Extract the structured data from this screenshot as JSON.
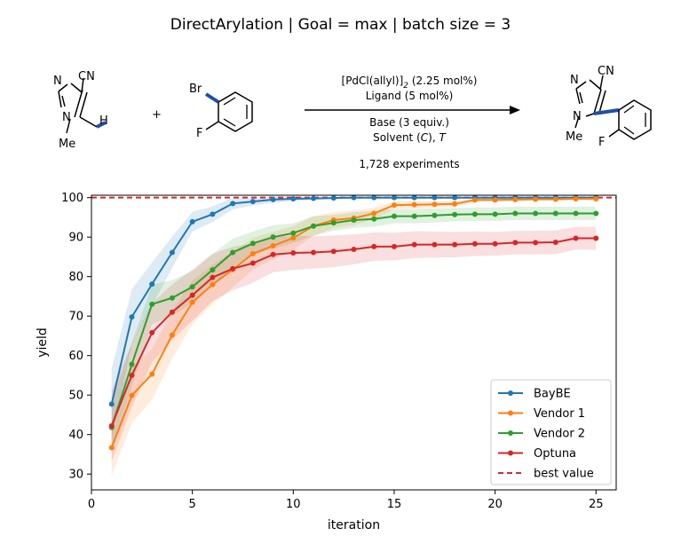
{
  "title": "DirectArylation  |  Goal = max  |  batch size = 3",
  "reaction": {
    "reactant1": {
      "cn": "CN",
      "n_top": "N",
      "n_bottom": "N",
      "h": "H",
      "me": "Me"
    },
    "plus": "+",
    "reactant2": {
      "br": "Br",
      "f": "F"
    },
    "conditions": {
      "catalyst_prefix": "[PdCl(allyl)]",
      "catalyst_sub": "2",
      "catalyst_suffix": " (2.25 mol%)",
      "ligand": "Ligand (5 mol%)",
      "base": "Base (3 equiv.)",
      "solvent_prefix": "Solvent (",
      "solvent_c": "C",
      "solvent_mid": "), ",
      "solvent_t": "T",
      "experiments": "1,728 experiments"
    },
    "product": {
      "cn": "CN",
      "n_top": "N",
      "n_bottom": "N",
      "me": "Me",
      "f": "F"
    }
  },
  "chart_data": {
    "type": "line",
    "xlabel": "iteration",
    "ylabel": "yield",
    "xlim": [
      0,
      26
    ],
    "ylim": [
      26,
      100.6
    ],
    "xticks": [
      0,
      5,
      10,
      15,
      20,
      25
    ],
    "yticks": [
      30,
      40,
      50,
      60,
      70,
      80,
      90,
      100
    ],
    "legend_position": "lower-right",
    "reference_line": {
      "name": "best value",
      "y": 100,
      "color": "#d62728",
      "style": "dashed"
    },
    "x": [
      1,
      2,
      3,
      4,
      5,
      6,
      7,
      8,
      9,
      10,
      11,
      12,
      13,
      14,
      15,
      16,
      17,
      18,
      19,
      20,
      21,
      22,
      23,
      24,
      25
    ],
    "series": [
      {
        "name": "BayBE",
        "color": "#1f77b4",
        "values": [
          47.7,
          69.8,
          78.1,
          86.1,
          93.9,
          95.8,
          98.5,
          99.0,
          99.5,
          99.7,
          99.8,
          99.9,
          100,
          100,
          100,
          100,
          100,
          100,
          100,
          100,
          100,
          100,
          100,
          100,
          100
        ],
        "band": [
          9,
          7,
          5.5,
          4,
          2.5,
          2,
          1.5,
          1,
          0.8,
          0.6,
          0.4,
          0.3,
          0.2,
          0.1,
          0,
          0,
          0,
          0,
          0,
          0,
          0,
          0,
          0,
          0,
          0
        ]
      },
      {
        "name": "Vendor 1",
        "color": "#ff7f0e",
        "values": [
          36.7,
          49.9,
          55.3,
          65.2,
          73.5,
          78.0,
          81.8,
          85.8,
          87.8,
          89.8,
          92.8,
          94.3,
          94.8,
          96.0,
          98.1,
          98.2,
          98.3,
          98.4,
          99.4,
          99.4,
          99.5,
          99.6,
          99.6,
          99.7,
          99.7
        ],
        "band": [
          7,
          7,
          6.5,
          6,
          5.5,
          5,
          4.5,
          4,
          3.5,
          3,
          2.5,
          2,
          1.8,
          1.5,
          1,
          1,
          0.8,
          0.8,
          0.5,
          0.5,
          0.5,
          0.4,
          0.4,
          0.3,
          0.3
        ]
      },
      {
        "name": "Vendor 2",
        "color": "#2ca02c",
        "values": [
          41.8,
          57.8,
          73.0,
          74.6,
          77.4,
          81.7,
          86.1,
          88.4,
          90.0,
          91.0,
          92.8,
          93.6,
          94.3,
          94.6,
          95.3,
          95.3,
          95.5,
          95.7,
          95.8,
          95.8,
          96.0,
          96.0,
          96.0,
          96.0,
          96.0
        ],
        "band": [
          6,
          5.5,
          5,
          4.5,
          4,
          4,
          3.5,
          3,
          3,
          2.5,
          2.5,
          2,
          2,
          2,
          1.8,
          1.8,
          1.8,
          1.7,
          1.7,
          1.7,
          1.7,
          1.7,
          1.7,
          1.7,
          1.7
        ]
      },
      {
        "name": "Optuna",
        "color": "#d62728",
        "values": [
          42.2,
          55.0,
          65.8,
          71.0,
          75.3,
          79.8,
          82.0,
          83.4,
          85.6,
          86.0,
          86.1,
          86.4,
          86.9,
          87.6,
          87.6,
          88.1,
          88.1,
          88.1,
          88.3,
          88.3,
          88.6,
          88.6,
          88.7,
          89.7,
          89.7
        ],
        "band": [
          9,
          8,
          7.5,
          7,
          6.5,
          6,
          5.5,
          5,
          4.5,
          4.3,
          4.1,
          4,
          3.8,
          3.6,
          3.5,
          3.4,
          3.3,
          3.2,
          3.1,
          3,
          3,
          3,
          3,
          2.9,
          2.9
        ]
      }
    ]
  }
}
